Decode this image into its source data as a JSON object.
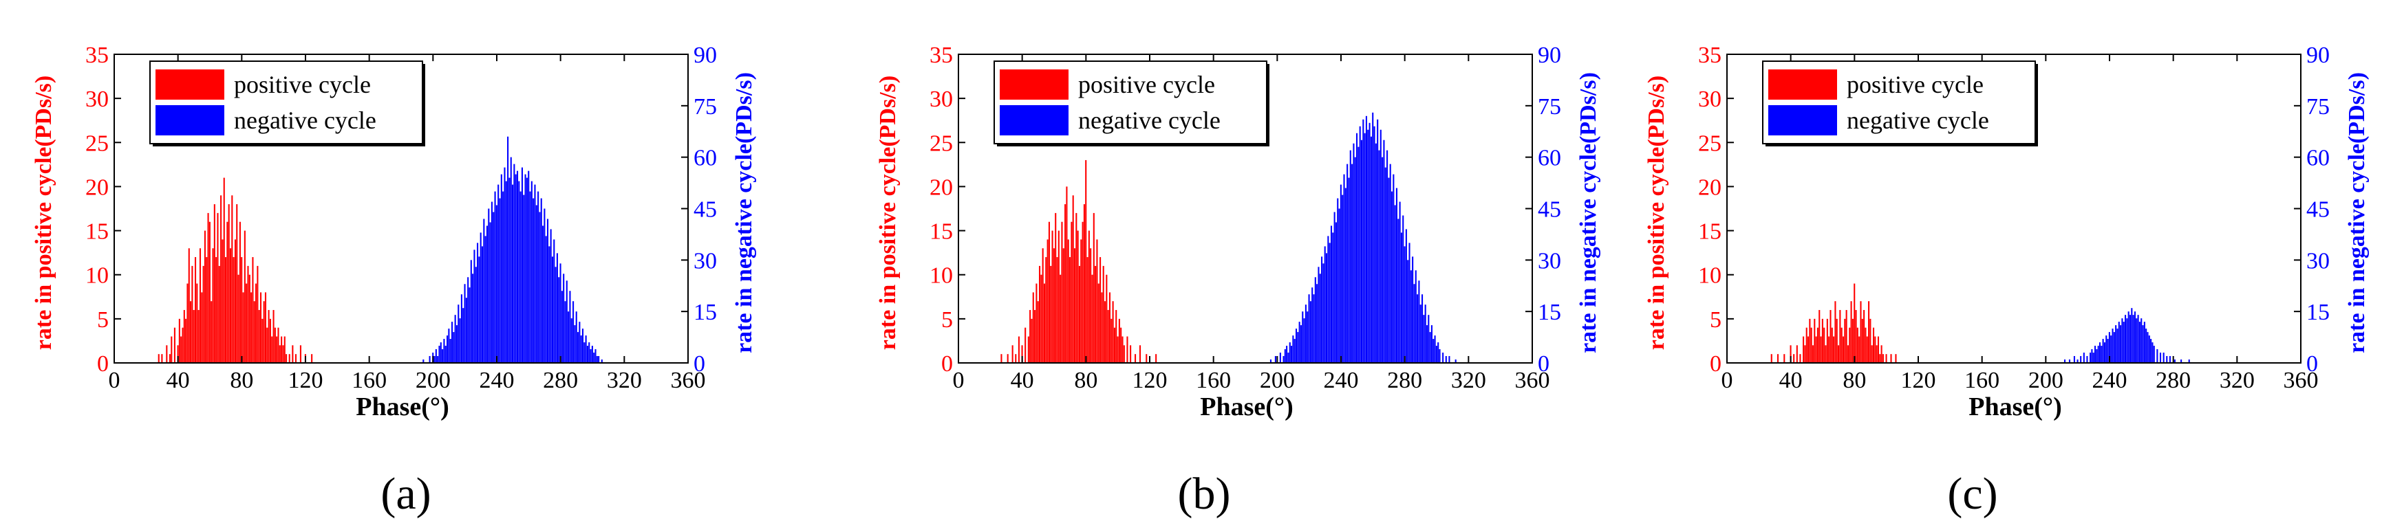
{
  "colors": {
    "positive": "#ff0000",
    "negative": "#0000ff",
    "axis": "#000000"
  },
  "shared": {
    "xlabel": "Phase(°)",
    "ylabel_left": "rate in positive cycle(PDs/s)",
    "ylabel_right": "rate in negative cycle(PDs/s)",
    "legend": [
      "positive cycle",
      "negative cycle"
    ],
    "x_ticks": [
      "0",
      "40",
      "80",
      "120",
      "160",
      "200",
      "240",
      "280",
      "320",
      "360"
    ],
    "yl_ticks": [
      "0",
      "5",
      "10",
      "15",
      "20",
      "25",
      "30",
      "35"
    ],
    "yr_ticks": [
      "0",
      "15",
      "30",
      "45",
      "60",
      "75",
      "90"
    ]
  },
  "chart_data": [
    {
      "type": "bar",
      "panel_label": "(a)",
      "xlabel": "Phase(°)",
      "xlim": [
        0,
        360
      ],
      "ylim_left": [
        0,
        35
      ],
      "ylim_right": [
        0,
        90
      ],
      "series": [
        {
          "name": "positive cycle",
          "axis": "left",
          "bin_width": 1,
          "x": [
            28,
            30,
            33,
            35,
            36,
            38,
            40,
            41,
            42,
            43,
            44,
            45,
            46,
            47,
            48,
            49,
            50,
            51,
            52,
            53,
            54,
            55,
            56,
            57,
            58,
            59,
            60,
            61,
            62,
            63,
            64,
            65,
            66,
            67,
            68,
            69,
            70,
            71,
            72,
            73,
            74,
            75,
            76,
            77,
            78,
            79,
            80,
            81,
            82,
            83,
            84,
            85,
            86,
            87,
            88,
            89,
            90,
            91,
            92,
            93,
            94,
            95,
            96,
            97,
            98,
            99,
            100,
            101,
            102,
            103,
            104,
            105,
            106,
            107,
            108,
            110,
            112,
            114,
            117,
            120,
            124
          ],
          "values": [
            1,
            1,
            2,
            1,
            3,
            4,
            2,
            5,
            3,
            4,
            6,
            5,
            9,
            13,
            7,
            11,
            6,
            12,
            9,
            6,
            13,
            8,
            11,
            15,
            12,
            17,
            16,
            7,
            13,
            18,
            12,
            17,
            11,
            19,
            14,
            21,
            12,
            16,
            18,
            13,
            19,
            12,
            14,
            18,
            10,
            16,
            12,
            8,
            15,
            9,
            11,
            10,
            8,
            12,
            7,
            9,
            11,
            6,
            8,
            5,
            7,
            8,
            4,
            6,
            5,
            3,
            6,
            4,
            3,
            4,
            2,
            3,
            2,
            3,
            1,
            1,
            2,
            1,
            2,
            1,
            1
          ]
        },
        {
          "name": "negative cycle",
          "axis": "right",
          "bin_width": 1,
          "x": [
            194,
            198,
            200,
            201,
            202,
            203,
            204,
            205,
            206,
            207,
            208,
            209,
            210,
            211,
            212,
            213,
            214,
            215,
            216,
            217,
            218,
            219,
            220,
            221,
            222,
            223,
            224,
            225,
            226,
            227,
            228,
            229,
            230,
            231,
            232,
            233,
            234,
            235,
            236,
            237,
            238,
            239,
            240,
            241,
            242,
            243,
            244,
            245,
            246,
            247,
            248,
            249,
            250,
            251,
            252,
            253,
            254,
            255,
            256,
            257,
            258,
            259,
            260,
            261,
            262,
            263,
            264,
            265,
            266,
            267,
            268,
            269,
            270,
            271,
            272,
            273,
            274,
            275,
            276,
            277,
            278,
            279,
            280,
            281,
            282,
            283,
            284,
            285,
            286,
            287,
            288,
            289,
            290,
            291,
            292,
            293,
            294,
            295,
            296,
            297,
            298,
            299,
            300,
            301,
            302,
            303,
            304,
            306
          ],
          "values": [
            1,
            2,
            3,
            2,
            4,
            2,
            5,
            6,
            4,
            7,
            5,
            8,
            10,
            7,
            12,
            9,
            14,
            11,
            17,
            13,
            20,
            16,
            23,
            19,
            25,
            22,
            30,
            26,
            33,
            28,
            35,
            31,
            38,
            34,
            42,
            37,
            40,
            45,
            41,
            47,
            44,
            50,
            46,
            52,
            48,
            55,
            50,
            57,
            53,
            66,
            54,
            60,
            52,
            58,
            55,
            56,
            53,
            50,
            57,
            49,
            55,
            54,
            56,
            50,
            53,
            48,
            52,
            46,
            50,
            44,
            48,
            40,
            45,
            37,
            42,
            34,
            39,
            31,
            36,
            28,
            32,
            25,
            29,
            21,
            26,
            18,
            24,
            15,
            21,
            13,
            18,
            11,
            15,
            9,
            12,
            8,
            10,
            6,
            8,
            5,
            6,
            4,
            5,
            3,
            4,
            2,
            2,
            1
          ]
        }
      ]
    },
    {
      "type": "bar",
      "panel_label": "(b)",
      "xlabel": "Phase(°)",
      "xlim": [
        0,
        360
      ],
      "ylim_left": [
        0,
        35
      ],
      "ylim_right": [
        0,
        90
      ],
      "series": [
        {
          "name": "positive cycle",
          "axis": "left",
          "bin_width": 1,
          "x": [
            27,
            31,
            34,
            36,
            38,
            40,
            42,
            44,
            45,
            46,
            47,
            48,
            49,
            50,
            51,
            52,
            53,
            54,
            55,
            56,
            57,
            58,
            59,
            60,
            61,
            62,
            63,
            64,
            65,
            66,
            67,
            68,
            69,
            70,
            71,
            72,
            73,
            74,
            75,
            76,
            77,
            78,
            79,
            80,
            81,
            82,
            83,
            84,
            85,
            86,
            87,
            88,
            89,
            90,
            91,
            92,
            93,
            94,
            95,
            96,
            97,
            98,
            99,
            100,
            101,
            102,
            103,
            104,
            106,
            108,
            111,
            114,
            118,
            124
          ],
          "values": [
            1,
            1,
            2,
            1,
            3,
            2,
            4,
            3,
            6,
            5,
            8,
            6,
            9,
            7,
            11,
            10,
            13,
            9,
            12,
            14,
            16,
            11,
            15,
            13,
            17,
            12,
            15,
            10,
            16,
            13,
            18,
            20,
            14,
            12,
            16,
            19,
            13,
            17,
            15,
            11,
            14,
            16,
            18,
            23,
            12,
            15,
            13,
            10,
            17,
            11,
            14,
            9,
            12,
            8,
            11,
            7,
            10,
            6,
            8,
            5,
            7,
            4,
            6,
            3,
            5,
            4,
            3,
            2,
            3,
            2,
            1,
            2,
            1,
            1
          ]
        },
        {
          "name": "negative cycle",
          "axis": "right",
          "bin_width": 1,
          "x": [
            196,
            199,
            202,
            204,
            205,
            206,
            207,
            208,
            209,
            210,
            211,
            212,
            213,
            214,
            215,
            216,
            217,
            218,
            219,
            220,
            221,
            222,
            223,
            224,
            225,
            226,
            227,
            228,
            229,
            230,
            231,
            232,
            233,
            234,
            235,
            236,
            237,
            238,
            239,
            240,
            241,
            242,
            243,
            244,
            245,
            246,
            247,
            248,
            249,
            250,
            251,
            252,
            253,
            254,
            255,
            256,
            257,
            258,
            259,
            260,
            261,
            262,
            263,
            264,
            265,
            266,
            267,
            268,
            269,
            270,
            271,
            272,
            273,
            274,
            275,
            276,
            277,
            278,
            279,
            280,
            281,
            282,
            283,
            284,
            285,
            286,
            287,
            288,
            289,
            290,
            291,
            292,
            293,
            294,
            295,
            296,
            297,
            298,
            299,
            300,
            301,
            302,
            304,
            306,
            308,
            312
          ],
          "values": [
            1,
            2,
            3,
            2,
            4,
            5,
            3,
            6,
            5,
            8,
            7,
            10,
            9,
            12,
            11,
            15,
            13,
            17,
            15,
            20,
            18,
            22,
            20,
            25,
            23,
            28,
            26,
            31,
            29,
            34,
            32,
            37,
            35,
            40,
            38,
            44,
            41,
            48,
            45,
            52,
            49,
            55,
            51,
            58,
            54,
            62,
            58,
            64,
            60,
            67,
            63,
            69,
            65,
            71,
            67,
            72,
            68,
            70,
            66,
            73,
            69,
            64,
            71,
            62,
            68,
            60,
            65,
            57,
            62,
            54,
            58,
            50,
            55,
            46,
            51,
            42,
            47,
            38,
            43,
            34,
            39,
            30,
            35,
            27,
            31,
            23,
            27,
            20,
            24,
            17,
            20,
            14,
            17,
            11,
            14,
            9,
            11,
            7,
            8,
            5,
            6,
            4,
            3,
            2,
            2,
            1
          ]
        }
      ]
    },
    {
      "type": "bar",
      "panel_label": "(c)",
      "xlabel": "Phase(°)",
      "xlim": [
        0,
        360
      ],
      "ylim_left": [
        0,
        35
      ],
      "ylim_right": [
        0,
        90
      ],
      "series": [
        {
          "name": "positive cycle",
          "axis": "left",
          "bin_width": 1,
          "x": [
            28,
            32,
            36,
            40,
            42,
            44,
            46,
            48,
            49,
            50,
            51,
            52,
            53,
            54,
            55,
            56,
            57,
            58,
            59,
            60,
            61,
            62,
            63,
            64,
            65,
            66,
            67,
            68,
            69,
            70,
            71,
            72,
            73,
            74,
            75,
            76,
            77,
            78,
            79,
            80,
            81,
            82,
            83,
            84,
            85,
            86,
            87,
            88,
            89,
            90,
            91,
            92,
            93,
            94,
            95,
            96,
            97,
            98,
            100,
            103,
            106
          ],
          "values": [
            1,
            1,
            1,
            2,
            1,
            2,
            1,
            3,
            2,
            4,
            3,
            5,
            4,
            2,
            5,
            3,
            4,
            6,
            3,
            5,
            4,
            2,
            5,
            3,
            6,
            4,
            3,
            7,
            5,
            2,
            6,
            4,
            3,
            5,
            6,
            2,
            4,
            7,
            5,
            9,
            6,
            4,
            3,
            7,
            5,
            6,
            4,
            3,
            7,
            5,
            2,
            4,
            3,
            2,
            3,
            1,
            2,
            1,
            1,
            1,
            1
          ]
        },
        {
          "name": "negative cycle",
          "axis": "right",
          "bin_width": 1,
          "x": [
            212,
            215,
            218,
            220,
            222,
            224,
            226,
            228,
            229,
            230,
            231,
            232,
            233,
            234,
            235,
            236,
            237,
            238,
            239,
            240,
            241,
            242,
            243,
            244,
            245,
            246,
            247,
            248,
            249,
            250,
            251,
            252,
            253,
            254,
            255,
            256,
            257,
            258,
            259,
            260,
            261,
            262,
            263,
            264,
            265,
            266,
            267,
            268,
            270,
            272,
            274,
            276,
            278,
            281,
            285,
            290
          ],
          "values": [
            1,
            1,
            2,
            1,
            2,
            3,
            2,
            3,
            4,
            3,
            5,
            4,
            5,
            6,
            5,
            7,
            6,
            8,
            7,
            9,
            8,
            10,
            9,
            11,
            10,
            12,
            11,
            13,
            12,
            14,
            13,
            15,
            14,
            16,
            14,
            15,
            13,
            14,
            12,
            13,
            11,
            12,
            10,
            9,
            8,
            7,
            6,
            5,
            4,
            3,
            3,
            2,
            2,
            1,
            1,
            1
          ]
        }
      ]
    }
  ]
}
